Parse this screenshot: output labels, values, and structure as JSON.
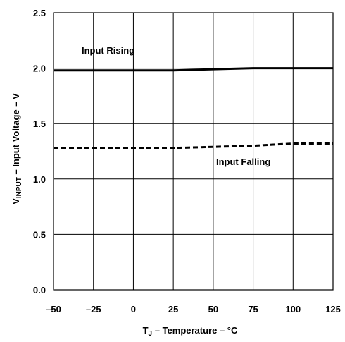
{
  "chart_data": {
    "type": "line",
    "xlabel": {
      "main": "T",
      "sub": "J",
      "rest": " – Temperature – °C"
    },
    "ylabel": {
      "main": "V",
      "sub": "INPUT",
      "rest": " – Input Voltage – V"
    },
    "xlim": [
      -50,
      125
    ],
    "ylim": [
      0,
      2.5
    ],
    "xticks": [
      "–50",
      "–25",
      "0",
      "25",
      "50",
      "75",
      "100",
      "125"
    ],
    "yticks": [
      "0.0",
      "0.5",
      "1.0",
      "1.5",
      "2.0",
      "2.5"
    ],
    "grid": true,
    "series": [
      {
        "name": "Input Rising",
        "style": "solid",
        "x": [
          -50,
          -25,
          0,
          25,
          50,
          75,
          100,
          125
        ],
        "y": [
          1.98,
          1.98,
          1.98,
          1.98,
          1.99,
          2.0,
          2.0,
          2.0
        ]
      },
      {
        "name": "Input Falling",
        "style": "dashed",
        "x": [
          -50,
          -25,
          0,
          25,
          50,
          75,
          100,
          125
        ],
        "y": [
          1.28,
          1.28,
          1.28,
          1.28,
          1.29,
          1.3,
          1.32,
          1.32
        ]
      }
    ]
  }
}
